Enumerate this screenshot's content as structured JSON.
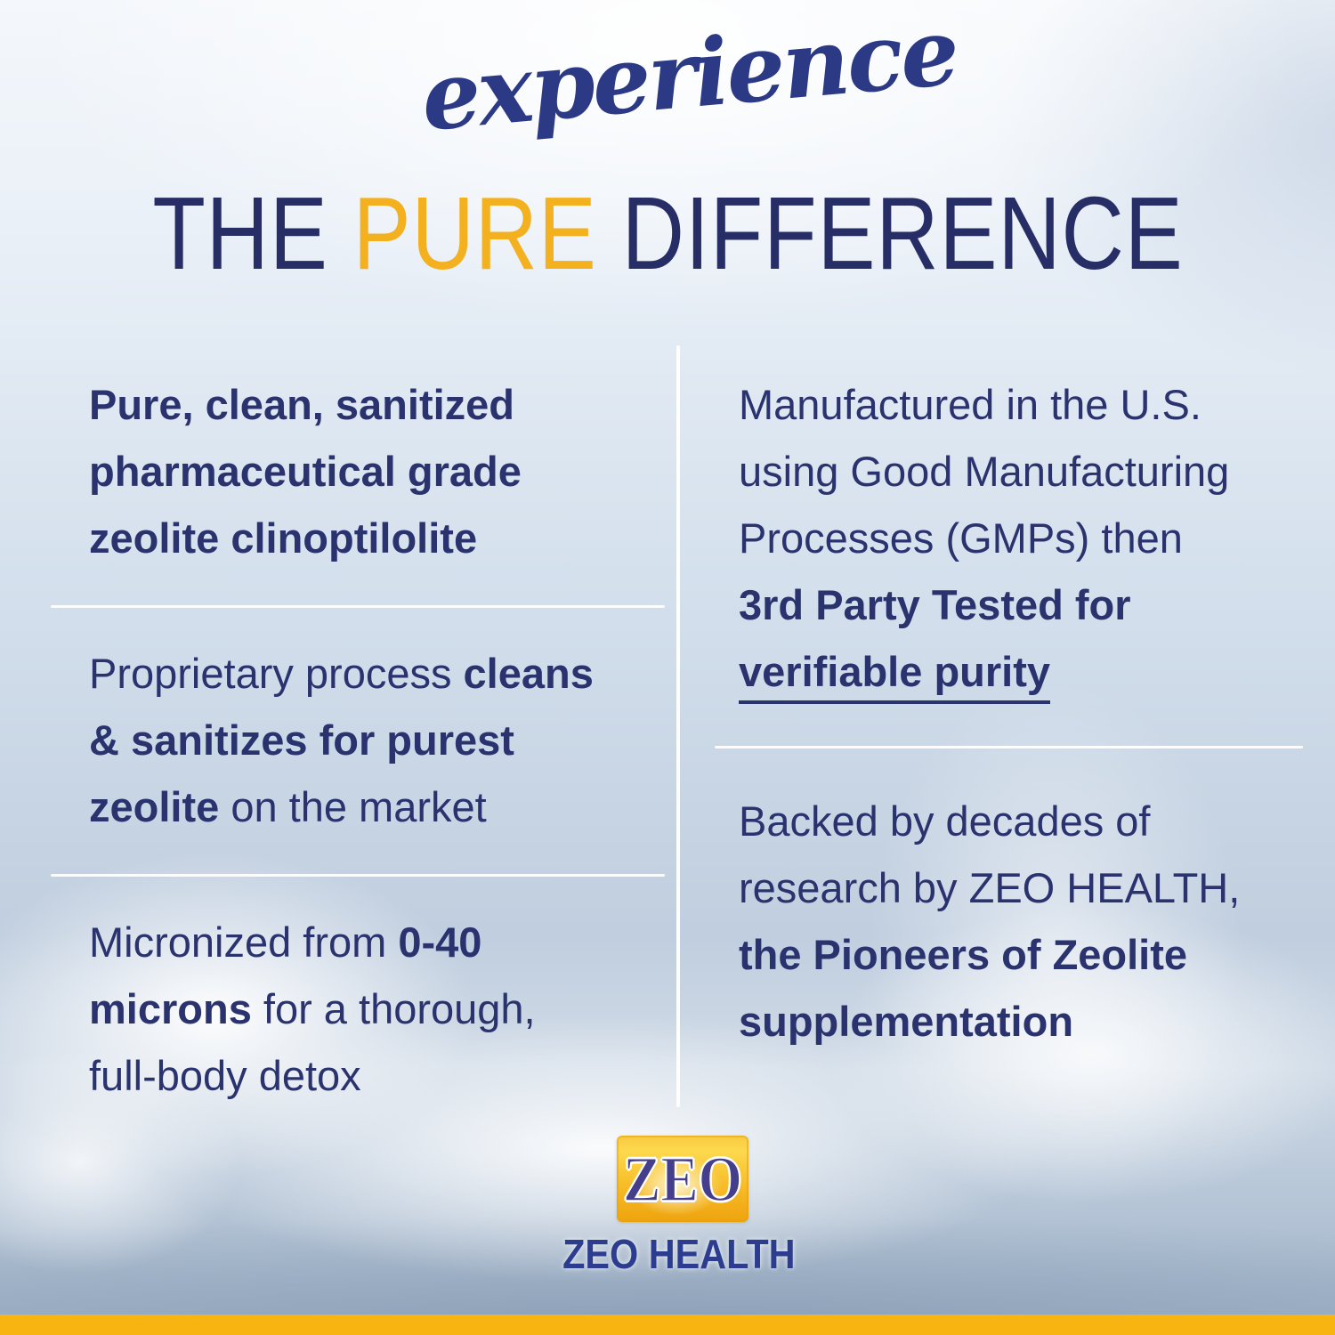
{
  "colors": {
    "navy_text": "#2a336e",
    "heading_navy": "#272e66",
    "gold": "#f3b01f",
    "script_blue": "#2c3984",
    "brand_blue": "#2c3c8f",
    "logo_purple": "#453e8c",
    "bottom_bar": "#f8b512",
    "divider_white": "#ffffff"
  },
  "header": {
    "script_word": "experience",
    "title": [
      {
        "t": "THE ",
        "c": "navy"
      },
      {
        "t": "PURE",
        "c": "gold"
      },
      {
        "t": " DIFFERENCE",
        "c": "navy"
      }
    ]
  },
  "left_column": [
    [
      [
        {
          "t": "Pure, clean, sanitized",
          "b": true
        }
      ],
      [
        {
          "t": "pharmaceutical grade",
          "b": true
        }
      ],
      [
        {
          "t": "zeolite clinoptilolite",
          "b": true
        }
      ]
    ],
    [
      [
        {
          "t": "Proprietary process ",
          "b": false
        },
        {
          "t": "cleans",
          "b": true
        }
      ],
      [
        {
          "t": "& sanitizes for purest",
          "b": true
        }
      ],
      [
        {
          "t": "zeolite",
          "b": true
        },
        {
          "t": " on the market",
          "b": false
        }
      ]
    ],
    [
      [
        {
          "t": "Micronized from ",
          "b": false
        },
        {
          "t": "0-40",
          "b": true
        }
      ],
      [
        {
          "t": "microns",
          "b": true
        },
        {
          "t": " for a thorough,",
          "b": false
        }
      ],
      [
        {
          "t": "full-body detox",
          "b": false
        }
      ]
    ]
  ],
  "right_column": [
    [
      [
        {
          "t": "Manufactured in the U.S.",
          "b": false
        }
      ],
      [
        {
          "t": "using Good Manufacturing",
          "b": false
        }
      ],
      [
        {
          "t": "Processes (GMPs) then",
          "b": false
        }
      ],
      [
        {
          "t": "3rd Party Tested for",
          "b": true
        }
      ],
      [
        {
          "t": "verifiable purity",
          "b": true,
          "u": true
        }
      ]
    ],
    [
      [
        {
          "t": "Backed by decades of",
          "b": false
        }
      ],
      [
        {
          "t": "research by ZEO HEALTH,",
          "b": false
        }
      ],
      [
        {
          "t": "the Pioneers of Zeolite",
          "b": true
        }
      ],
      [
        {
          "t": "supplementation",
          "b": true
        }
      ]
    ]
  ],
  "footer": {
    "logo_text": "ZEO",
    "brand_name": "ZEO HEALTH"
  }
}
